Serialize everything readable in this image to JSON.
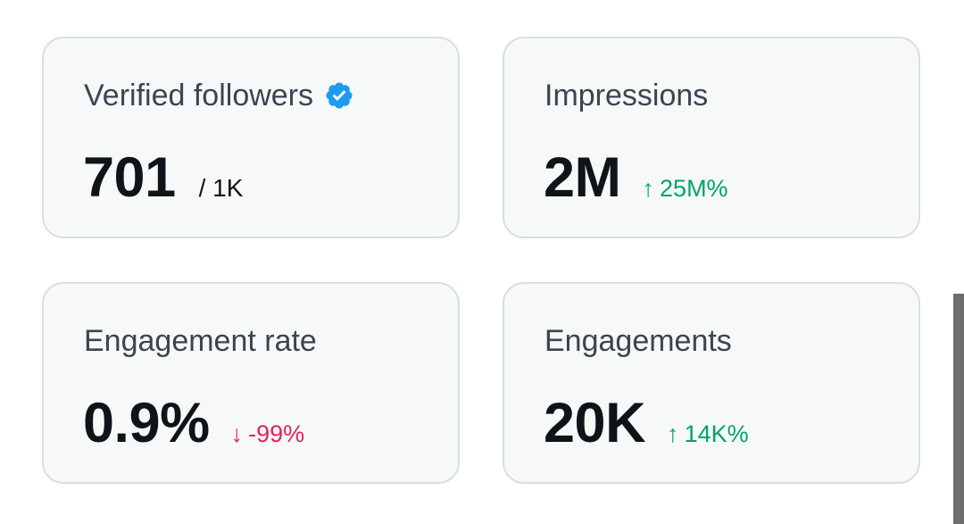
{
  "cards": {
    "verified": {
      "title": "Verified followers",
      "value": "701",
      "suffix": "/ 1K"
    },
    "impressions": {
      "title": "Impressions",
      "value": "2M",
      "delta": "25M%",
      "delta_direction": "up"
    },
    "engagement_rate": {
      "title": "Engagement rate",
      "value": "0.9%",
      "delta": "-99%",
      "delta_direction": "down"
    },
    "engagements": {
      "title": "Engagements",
      "value": "20K",
      "delta": "14K%",
      "delta_direction": "up"
    }
  },
  "colors": {
    "up": "#00a36c",
    "down": "#e0245e",
    "badge": "#1d9bf0"
  },
  "icons": {
    "up": "arrow-up-icon",
    "down": "arrow-down-icon",
    "badge": "verified-badge-icon"
  }
}
